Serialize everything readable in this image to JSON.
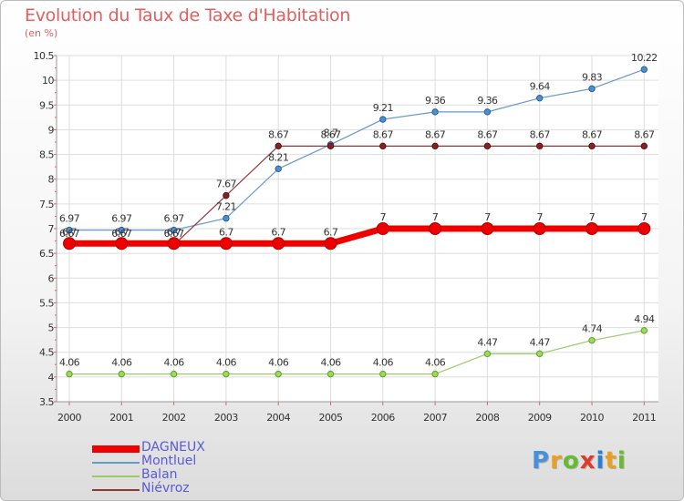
{
  "header": {
    "title": "Evolution du Taux de Taxe d'Habitation",
    "subtitle": "(en %)"
  },
  "brand": {
    "text": "Proxiti",
    "colors": [
      "#4a90d9",
      "#e8a020",
      "#66bb33",
      "#e23a2a",
      "#2a7fd0",
      "#e8a020",
      "#66bb33"
    ]
  },
  "chart_data": {
    "type": "line",
    "x": [
      "2000",
      "2001",
      "2002",
      "2003",
      "2004",
      "2005",
      "2006",
      "2007",
      "2008",
      "2009",
      "2010",
      "2011"
    ],
    "ylim": [
      3.5,
      10.5
    ],
    "yticks": [
      "3.5",
      "4",
      "4.5",
      "5",
      "5.5",
      "6",
      "6.5",
      "7",
      "7.5",
      "8",
      "8.5",
      "9",
      "9.5",
      "10",
      "10.5"
    ],
    "grid": true,
    "legend_position": "bottom-left",
    "series": [
      {
        "name": "DAGNEUX",
        "color": "#ee0000",
        "values": [
          6.7,
          6.7,
          6.7,
          6.7,
          6.7,
          6.7,
          7,
          7,
          7,
          7,
          7,
          7
        ],
        "labels": [
          "6.7",
          "6.7",
          "6.7",
          "6.7",
          "6.7",
          "6.7",
          "7",
          "7",
          "7",
          "7",
          "7",
          "7"
        ]
      },
      {
        "name": "Montluel",
        "color": "#6699cc",
        "values": [
          6.97,
          6.97,
          6.97,
          7.21,
          8.21,
          8.7,
          9.21,
          9.36,
          9.36,
          9.64,
          9.83,
          10.22
        ],
        "labels": [
          "6.97",
          "6.97",
          "6.97",
          "7.21",
          "8.21",
          "8.7",
          "9.21",
          "9.36",
          "9.36",
          "9.64",
          "9.83",
          "10.22"
        ]
      },
      {
        "name": "Balan",
        "color": "#99cc66",
        "values": [
          4.06,
          4.06,
          4.06,
          4.06,
          4.06,
          4.06,
          4.06,
          4.06,
          4.47,
          4.47,
          4.74,
          4.94
        ],
        "labels": [
          "4.06",
          "4.06",
          "4.06",
          "4.06",
          "4.06",
          "4.06",
          "4.06",
          "4.06",
          "4.47",
          "4.47",
          "4.74",
          "4.94"
        ]
      },
      {
        "name": "Niévroz",
        "color": "#8b3a3a",
        "values": [
          6.67,
          6.67,
          6.67,
          7.67,
          8.67,
          8.67,
          8.67,
          8.67,
          8.67,
          8.67,
          8.67,
          8.67
        ],
        "labels": [
          "6.67",
          "6.67",
          "6.67",
          "7.67",
          "8.67",
          "8.67",
          "8.67",
          "8.67",
          "8.67",
          "8.67",
          "8.67",
          "8.67"
        ]
      }
    ]
  }
}
